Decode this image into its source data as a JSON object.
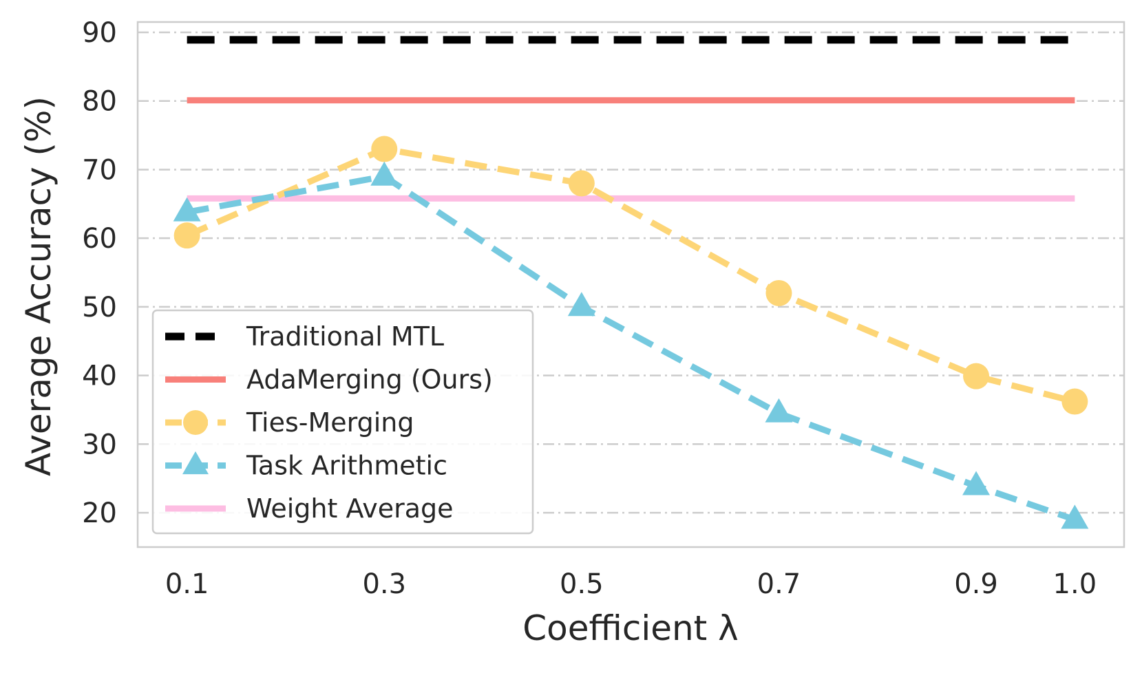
{
  "chart_data": {
    "type": "line",
    "xlabel": "Coefficient λ",
    "ylabel": "Average Accuracy (%)",
    "x_ticks": [
      "0.1",
      "0.3",
      "0.5",
      "0.7",
      "0.9",
      "1.0"
    ],
    "x_positions": [
      0.1,
      0.3,
      0.5,
      0.7,
      0.9,
      1.0
    ],
    "y_ticks": [
      "20",
      "30",
      "40",
      "50",
      "60",
      "70",
      "80",
      "90"
    ],
    "y_tick_values": [
      20,
      30,
      40,
      50,
      60,
      70,
      80,
      90
    ],
    "xlim": [
      0.05,
      1.05
    ],
    "ylim": [
      15,
      91.5
    ],
    "grid": true,
    "legend_position": "lower-left",
    "series": [
      {
        "name": "Traditional MTL",
        "color": "#000000",
        "style": "dashed-bold",
        "marker": "none",
        "x": [
          0.1,
          1.0
        ],
        "values": [
          88.9,
          88.9
        ]
      },
      {
        "name": "AdaMerging (Ours)",
        "color": "#f8807a",
        "style": "solid",
        "marker": "none",
        "x": [
          0.1,
          1.0
        ],
        "values": [
          80.1,
          80.1
        ]
      },
      {
        "name": "Ties-Merging",
        "color": "#fdd576",
        "style": "dashed",
        "marker": "circle",
        "x": [
          0.1,
          0.3,
          0.5,
          0.7,
          0.9,
          1.0
        ],
        "values": [
          60.4,
          73.0,
          68.0,
          52.0,
          39.9,
          36.2
        ]
      },
      {
        "name": "Task Arithmetic",
        "color": "#75c9df",
        "style": "dashed",
        "marker": "triangle",
        "x": [
          0.1,
          0.3,
          0.5,
          0.7,
          0.9,
          1.0
        ],
        "values": [
          63.8,
          69.0,
          50.0,
          34.5,
          23.9,
          19.0
        ]
      },
      {
        "name": "Weight Average",
        "color": "#fdbde2",
        "style": "solid",
        "marker": "none",
        "x": [
          0.1,
          1.0
        ],
        "values": [
          65.8,
          65.8
        ]
      }
    ]
  }
}
